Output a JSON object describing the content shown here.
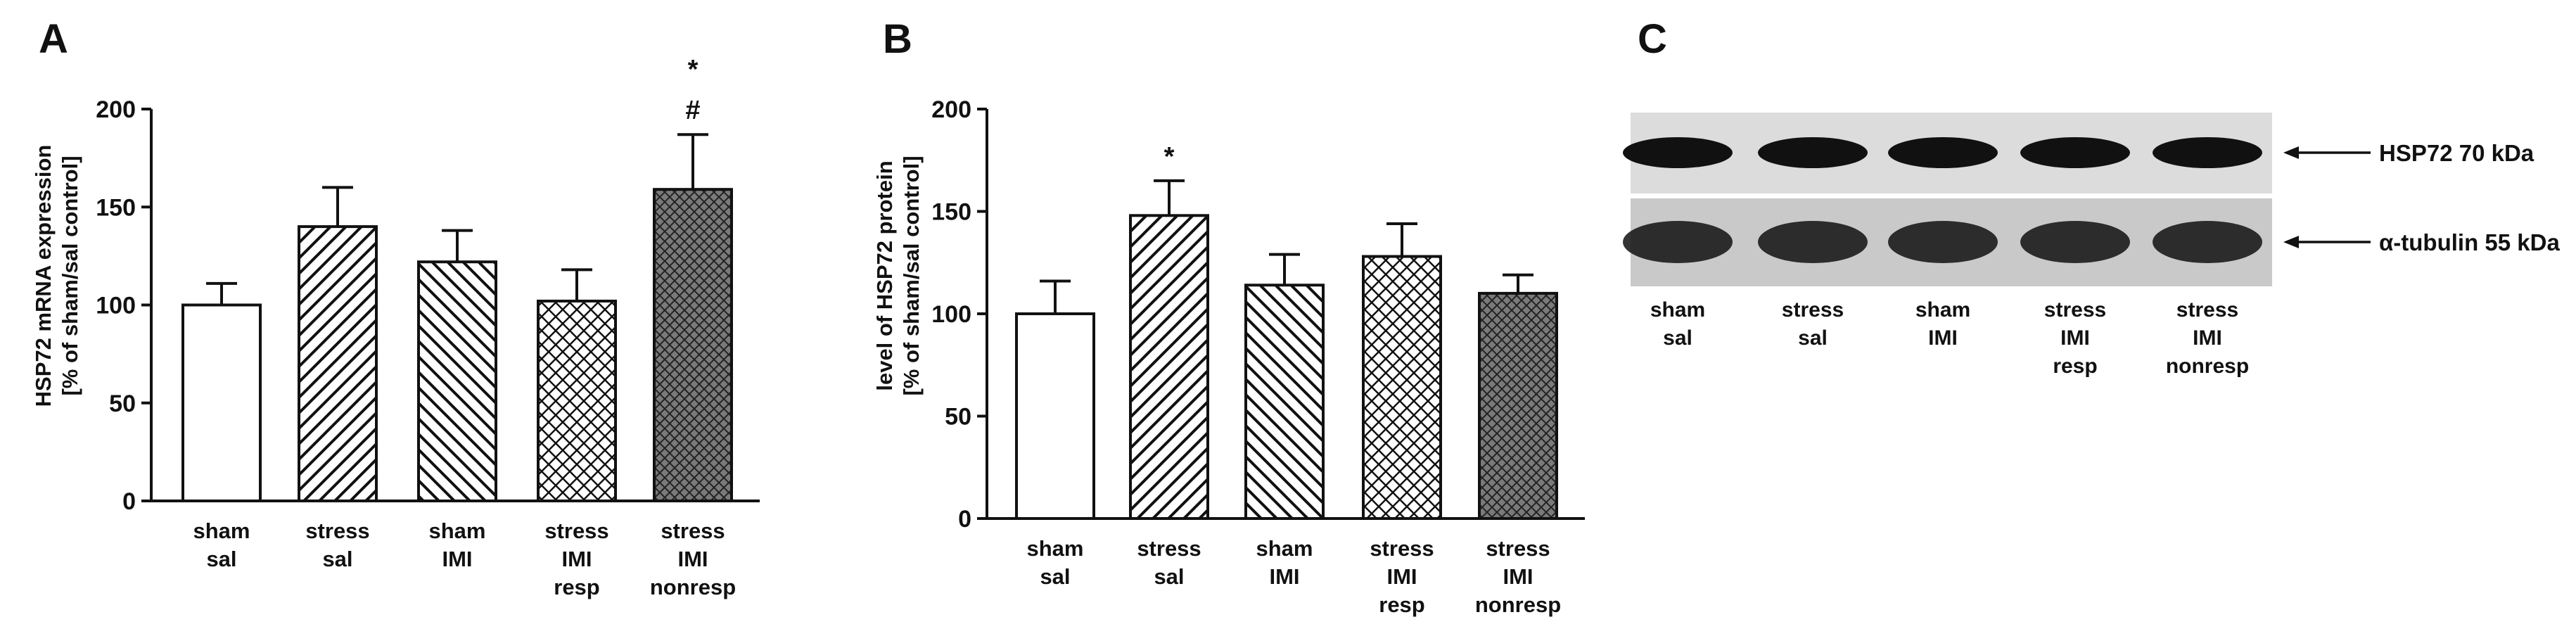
{
  "chart_data": [
    {
      "panel_label": "A",
      "type": "bar",
      "ylabel_lines": [
        "HSP72 mRNA expression",
        "[% of sham/sal control]"
      ],
      "ylim": [
        0,
        200
      ],
      "yticks": [
        0,
        50,
        100,
        150,
        200
      ],
      "categories": [
        [
          "sham",
          "sal"
        ],
        [
          "stress",
          "sal"
        ],
        [
          "sham",
          "IMI"
        ],
        [
          "stress",
          "IMI",
          "resp"
        ],
        [
          "stress",
          "IMI",
          "nonresp"
        ]
      ],
      "values": [
        100,
        140,
        122,
        102,
        159
      ],
      "errors": [
        11,
        20,
        16,
        16,
        28
      ],
      "patterns": [
        "none",
        "diag-up",
        "diag-down",
        "crosshatch",
        "crosshatch-dense"
      ],
      "annotations": [
        {
          "category_index": 4,
          "labels": [
            "*",
            "#"
          ]
        }
      ],
      "grid": false
    },
    {
      "panel_label": "B",
      "type": "bar",
      "ylabel_lines": [
        "level of HSP72 protein",
        "[% of sham/sal control]"
      ],
      "ylim": [
        0,
        200
      ],
      "yticks": [
        0,
        50,
        100,
        150,
        200
      ],
      "categories": [
        [
          "sham",
          "sal"
        ],
        [
          "stress",
          "sal"
        ],
        [
          "sham",
          "IMI"
        ],
        [
          "stress",
          "IMI",
          "resp"
        ],
        [
          "stress",
          "IMI",
          "nonresp"
        ]
      ],
      "values": [
        100,
        148,
        114,
        128,
        110
      ],
      "errors": [
        16,
        17,
        15,
        16,
        9
      ],
      "patterns": [
        "none",
        "diag-up",
        "diag-down",
        "crosshatch",
        "crosshatch-dense"
      ],
      "annotations": [
        {
          "category_index": 1,
          "labels": [
            "*"
          ]
        }
      ],
      "grid": false
    }
  ],
  "blot": {
    "panel_label": "C",
    "bands": [
      {
        "label": "HSP72 70 kDa",
        "intensity": 1.0
      },
      {
        "label": "α-tubulin 55 kDa",
        "intensity": 0.85
      }
    ],
    "lanes": [
      [
        "sham",
        "sal"
      ],
      [
        "stress",
        "sal"
      ],
      [
        "sham",
        "IMI"
      ],
      [
        "stress",
        "IMI",
        "resp"
      ],
      [
        "stress",
        "IMI",
        "nonresp"
      ]
    ]
  }
}
